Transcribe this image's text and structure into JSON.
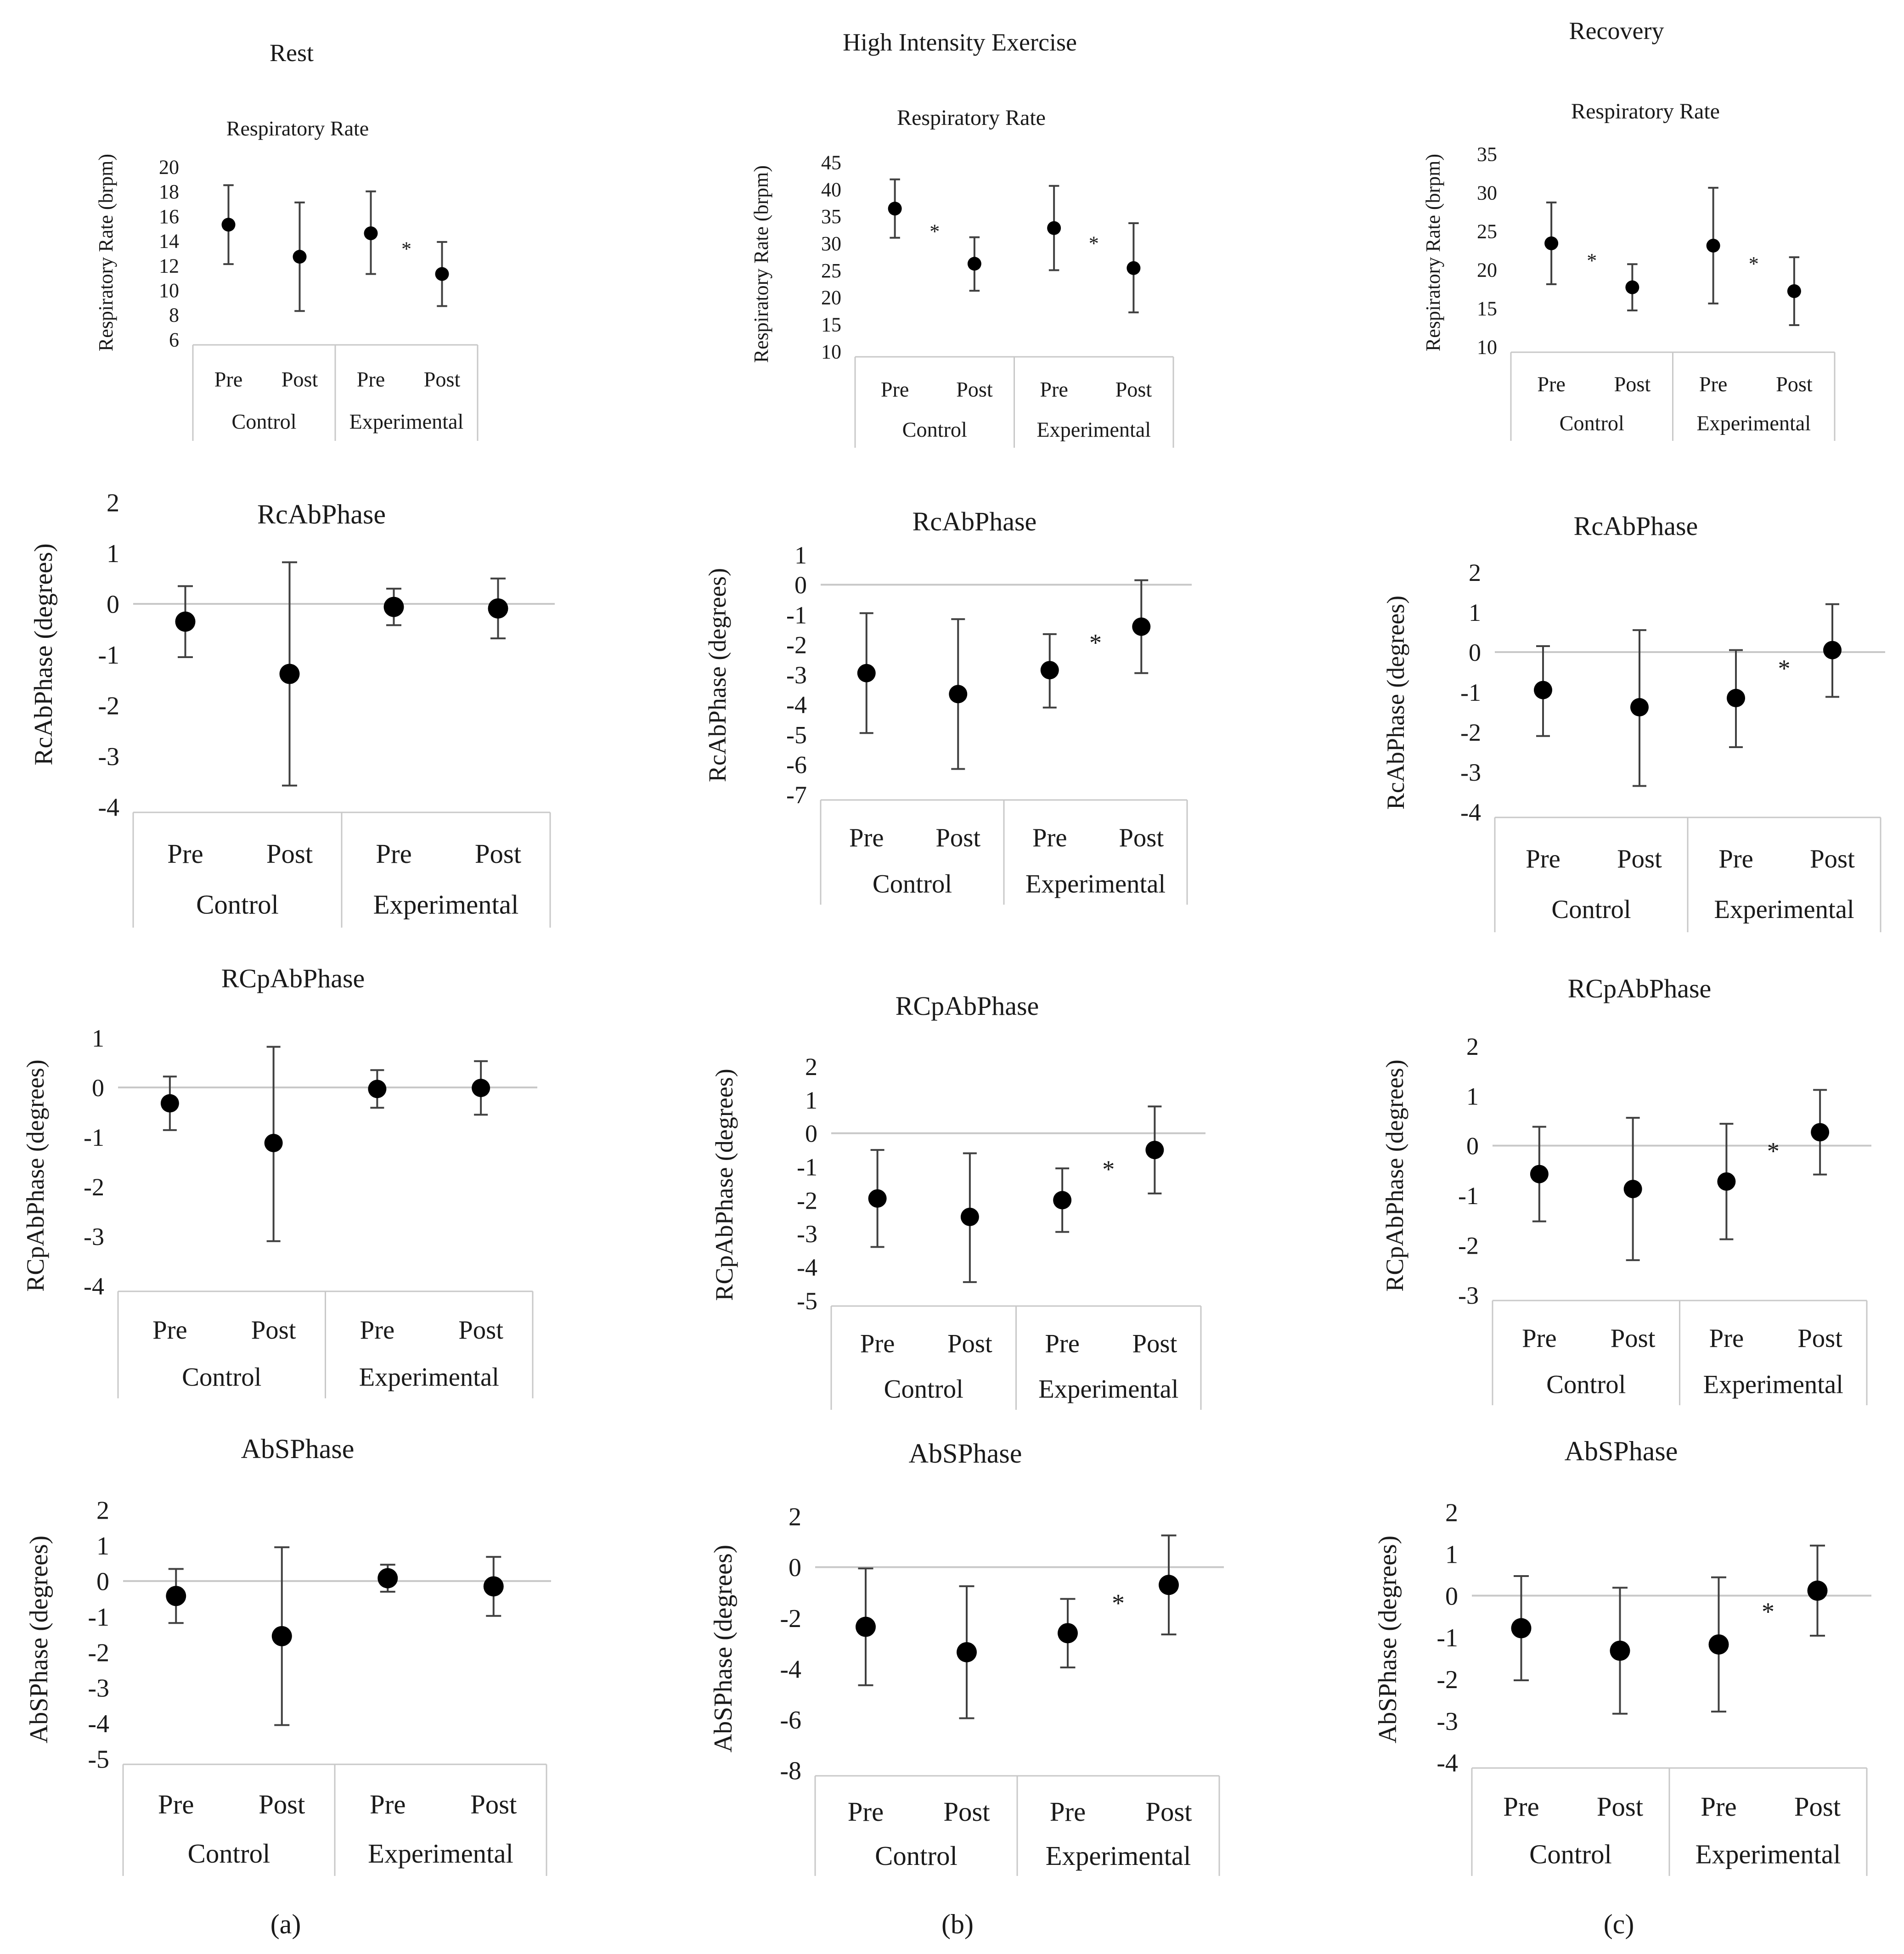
{
  "column_titles": [
    "Rest",
    "High Intensity Exercise",
    "Recovery"
  ],
  "panel_labels": [
    "(a)",
    "(b)",
    "(c)"
  ],
  "significance_marker": "*",
  "colors": {
    "marker": "#000000",
    "error_bar": "#404040",
    "zero_line": "#c8c8c8",
    "axis_box": "#c8c8c8",
    "text": "#1a1a1a"
  },
  "chart_data": [
    {
      "id": "rest-rr",
      "type": "scatter",
      "title": "Respiratory Rate",
      "ylabel": "Respiratory Rate (brpm)",
      "ylim": [
        6,
        20
      ],
      "yticks": [
        6,
        8,
        10,
        12,
        14,
        16,
        18,
        20
      ],
      "zero_line": false,
      "categories": [
        "Pre",
        "Post",
        "Pre",
        "Post"
      ],
      "groups": [
        "Control",
        "Experimental"
      ],
      "values": [
        15.3,
        12.7,
        14.6,
        11.3
      ],
      "lower": [
        12.1,
        8.3,
        11.3,
        8.7
      ],
      "upper": [
        18.5,
        17.1,
        18.0,
        13.9
      ],
      "significant": [
        2
      ]
    },
    {
      "id": "hie-rr",
      "type": "scatter",
      "title": "Respiratory Rate",
      "ylabel": "Respiratory Rate (brpm)",
      "ylim": [
        10,
        45
      ],
      "yticks": [
        10,
        15,
        20,
        25,
        30,
        35,
        40,
        45
      ],
      "zero_line": false,
      "categories": [
        "Pre",
        "Post",
        "Pre",
        "Post"
      ],
      "groups": [
        "Control",
        "Experimental"
      ],
      "values": [
        36.4,
        26.2,
        32.8,
        25.4
      ],
      "lower": [
        31.0,
        21.2,
        25.0,
        17.2
      ],
      "upper": [
        41.8,
        31.1,
        40.6,
        33.7
      ],
      "significant": [
        0,
        2
      ]
    },
    {
      "id": "rec-rr",
      "type": "scatter",
      "title": "Respiratory Rate",
      "ylabel": "Respiratory Rate (brpm)",
      "ylim": [
        10,
        35
      ],
      "yticks": [
        10,
        15,
        20,
        25,
        30,
        35
      ],
      "zero_line": false,
      "categories": [
        "Pre",
        "Post",
        "Pre",
        "Post"
      ],
      "groups": [
        "Control",
        "Experimental"
      ],
      "values": [
        23.4,
        17.7,
        23.1,
        17.2
      ],
      "lower": [
        18.1,
        14.7,
        15.6,
        12.8
      ],
      "upper": [
        28.7,
        20.7,
        30.6,
        21.6
      ],
      "significant": [
        0,
        2
      ]
    },
    {
      "id": "rest-rcab",
      "type": "scatter",
      "title": "RcAbPhase",
      "ylabel": "RcAbPhase (degrees)",
      "ylim": [
        -4,
        2
      ],
      "yticks": [
        -4,
        -3,
        -2,
        -1,
        0,
        1,
        2
      ],
      "zero_line": true,
      "categories": [
        "Pre",
        "Post",
        "Pre",
        "Post"
      ],
      "groups": [
        "Control",
        "Experimental"
      ],
      "values": [
        -0.35,
        -1.38,
        -0.06,
        -0.09
      ],
      "lower": [
        -1.05,
        -3.58,
        -0.42,
        -0.68
      ],
      "upper": [
        0.35,
        0.82,
        0.3,
        0.5
      ],
      "significant": []
    },
    {
      "id": "hie-rcab",
      "type": "scatter",
      "title": "RcAbPhase",
      "ylabel": "RcAbPhase (degrees)",
      "ylim": [
        -7,
        1
      ],
      "yticks": [
        -7,
        -6,
        -5,
        -4,
        -3,
        -2,
        -1,
        0,
        1
      ],
      "zero_line": true,
      "categories": [
        "Pre",
        "Post",
        "Pre",
        "Post"
      ],
      "groups": [
        "Control",
        "Experimental"
      ],
      "values": [
        -2.95,
        -3.65,
        -2.85,
        -1.4
      ],
      "lower": [
        -4.95,
        -6.15,
        -4.1,
        -2.95
      ],
      "upper": [
        -0.95,
        -1.15,
        -1.65,
        0.15
      ],
      "significant": [
        2
      ]
    },
    {
      "id": "rec-rcab",
      "type": "scatter",
      "title": "RcAbPhase",
      "ylabel": "RcAbPhase (degrees)",
      "ylim": [
        -4,
        2
      ],
      "yticks": [
        -4,
        -3,
        -2,
        -1,
        0,
        1,
        2
      ],
      "zero_line": true,
      "categories": [
        "Pre",
        "Post",
        "Pre",
        "Post"
      ],
      "groups": [
        "Control",
        "Experimental"
      ],
      "values": [
        -0.95,
        -1.38,
        -1.15,
        0.05
      ],
      "lower": [
        -2.1,
        -3.35,
        -2.38,
        -1.12
      ],
      "upper": [
        0.15,
        0.55,
        0.05,
        1.2
      ],
      "significant": [
        2
      ]
    },
    {
      "id": "rest-rcpab",
      "type": "scatter",
      "title": "RCpAbPhase",
      "ylabel": "RCpAbPhase (degrees)",
      "ylim": [
        -4,
        1
      ],
      "yticks": [
        -4,
        -3,
        -2,
        -1,
        0,
        1
      ],
      "zero_line": true,
      "categories": [
        "Pre",
        "Post",
        "Pre",
        "Post"
      ],
      "groups": [
        "Control",
        "Experimental"
      ],
      "values": [
        -0.32,
        -1.12,
        -0.03,
        -0.01
      ],
      "lower": [
        -0.86,
        -3.1,
        -0.41,
        -0.55
      ],
      "upper": [
        0.22,
        0.82,
        0.35,
        0.53
      ],
      "significant": []
    },
    {
      "id": "hie-rcpab",
      "type": "scatter",
      "title": "RCpAbPhase",
      "ylabel": "RCpAbPhase (degrees)",
      "ylim": [
        -5,
        2
      ],
      "yticks": [
        -5,
        -4,
        -3,
        -2,
        -1,
        0,
        1,
        2
      ],
      "zero_line": true,
      "categories": [
        "Pre",
        "Post",
        "Pre",
        "Post"
      ],
      "groups": [
        "Control",
        "Experimental"
      ],
      "values": [
        -1.95,
        -2.5,
        -2.0,
        -0.5
      ],
      "lower": [
        -3.4,
        -4.45,
        -2.95,
        -1.8
      ],
      "upper": [
        -0.5,
        -0.6,
        -1.05,
        0.8
      ],
      "significant": [
        2
      ]
    },
    {
      "id": "rec-rcpab",
      "type": "scatter",
      "title": "RCpAbPhase",
      "ylabel": "RCpAbPhase (degrees)",
      "ylim": [
        -3,
        2
      ],
      "yticks": [
        -3,
        -2,
        -1,
        0,
        1,
        2
      ],
      "zero_line": true,
      "categories": [
        "Pre",
        "Post",
        "Pre",
        "Post"
      ],
      "groups": [
        "Control",
        "Experimental"
      ],
      "values": [
        -0.57,
        -0.87,
        -0.72,
        0.27
      ],
      "lower": [
        -1.52,
        -2.3,
        -1.88,
        -0.58
      ],
      "upper": [
        0.38,
        0.56,
        0.44,
        1.12
      ],
      "significant": [
        2
      ]
    },
    {
      "id": "rest-abs",
      "type": "scatter",
      "title": "AbSPhase",
      "ylabel": "AbSPhase (degrees)",
      "ylim": [
        -5,
        2
      ],
      "yticks": [
        -5,
        -4,
        -3,
        -2,
        -1,
        0,
        1,
        2
      ],
      "zero_line": true,
      "categories": [
        "Pre",
        "Post",
        "Pre",
        "Post"
      ],
      "groups": [
        "Control",
        "Experimental"
      ],
      "values": [
        -0.42,
        -1.55,
        0.08,
        -0.15
      ],
      "lower": [
        -1.18,
        -4.05,
        -0.3,
        -0.98
      ],
      "upper": [
        0.34,
        0.95,
        0.46,
        0.68
      ],
      "significant": []
    },
    {
      "id": "hie-abs",
      "type": "scatter",
      "title": "AbSPhase",
      "ylabel": "AbSPhase (degrees)",
      "ylim": [
        -8,
        2
      ],
      "yticks": [
        -8,
        -6,
        -4,
        -2,
        0,
        2
      ],
      "zero_line": true,
      "categories": [
        "Pre",
        "Post",
        "Pre",
        "Post"
      ],
      "groups": [
        "Control",
        "Experimental"
      ],
      "values": [
        -2.35,
        -3.35,
        -2.6,
        -0.7
      ],
      "lower": [
        -4.65,
        -5.95,
        -3.95,
        -2.65
      ],
      "upper": [
        -0.05,
        -0.75,
        -1.25,
        1.25
      ],
      "significant": [
        2
      ]
    },
    {
      "id": "rec-abs",
      "type": "scatter",
      "title": "AbSPhase",
      "ylabel": "AbSPhase (degrees)",
      "ylim": [
        -4,
        2
      ],
      "yticks": [
        -4,
        -3,
        -2,
        -1,
        0,
        1,
        2
      ],
      "zero_line": true,
      "categories": [
        "Pre",
        "Post",
        "Pre",
        "Post"
      ],
      "groups": [
        "Control",
        "Experimental"
      ],
      "values": [
        -0.78,
        -1.32,
        -1.17,
        0.12
      ],
      "lower": [
        -2.03,
        -2.83,
        -2.78,
        -0.96
      ],
      "upper": [
        0.47,
        0.19,
        0.44,
        1.2
      ],
      "significant": [
        2
      ]
    }
  ]
}
